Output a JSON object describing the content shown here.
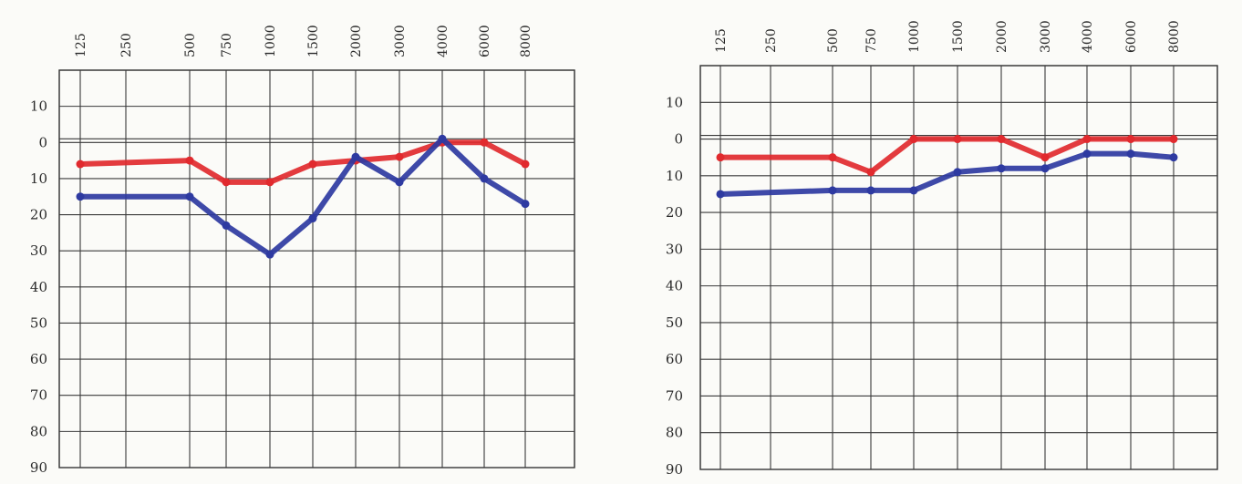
{
  "chart_data": [
    {
      "type": "line",
      "x_scale": "categorical",
      "x_tick_labels": [
        "125",
        "250",
        "500",
        "750",
        "1000",
        "1500",
        "2000",
        "3000",
        "4000",
        "6000",
        "8000"
      ],
      "y_tick_labels": [
        "10",
        "0",
        "10",
        "20",
        "30",
        "40",
        "50",
        "60",
        "70",
        "80",
        "90"
      ],
      "y_tick_values": [
        -10,
        0,
        10,
        20,
        30,
        40,
        50,
        60,
        70,
        80,
        90
      ],
      "ylim": [
        -20,
        90
      ],
      "y_inverted": true,
      "grid": true,
      "series": [
        {
          "color": "#e12a2e",
          "x": [
            125,
            500,
            750,
            1000,
            1500,
            2000,
            3000,
            4000,
            6000,
            8000
          ],
          "values": [
            6,
            5,
            11,
            11,
            6,
            5,
            4,
            0,
            0,
            6
          ]
        },
        {
          "color": "#2e3aa1",
          "x": [
            125,
            500,
            750,
            1000,
            1500,
            2000,
            3000,
            4000,
            6000,
            8000
          ],
          "values": [
            15,
            15,
            23,
            31,
            21,
            4,
            11,
            -1,
            10,
            17
          ]
        }
      ]
    },
    {
      "type": "line",
      "x_scale": "categorical",
      "x_tick_labels": [
        "125",
        "250",
        "500",
        "750",
        "1000",
        "1500",
        "2000",
        "3000",
        "4000",
        "6000",
        "8000"
      ],
      "y_tick_labels": [
        "10",
        "0",
        "10",
        "20",
        "30",
        "40",
        "50",
        "60",
        "70",
        "80",
        "90"
      ],
      "y_tick_values": [
        -10,
        0,
        10,
        20,
        30,
        40,
        50,
        60,
        70,
        80,
        90
      ],
      "ylim": [
        -20,
        90
      ],
      "y_inverted": true,
      "grid": true,
      "series": [
        {
          "color": "#e12a2e",
          "x": [
            125,
            500,
            750,
            1000,
            1500,
            2000,
            3000,
            4000,
            6000,
            8000
          ],
          "values": [
            5,
            5,
            9,
            0,
            0,
            0,
            5,
            0,
            0,
            0
          ]
        },
        {
          "color": "#2e3aa1",
          "x": [
            125,
            500,
            750,
            1000,
            1500,
            2000,
            3000,
            4000,
            6000,
            8000
          ],
          "values": [
            15,
            14,
            14,
            14,
            9,
            8,
            8,
            4,
            4,
            5
          ]
        }
      ]
    }
  ]
}
